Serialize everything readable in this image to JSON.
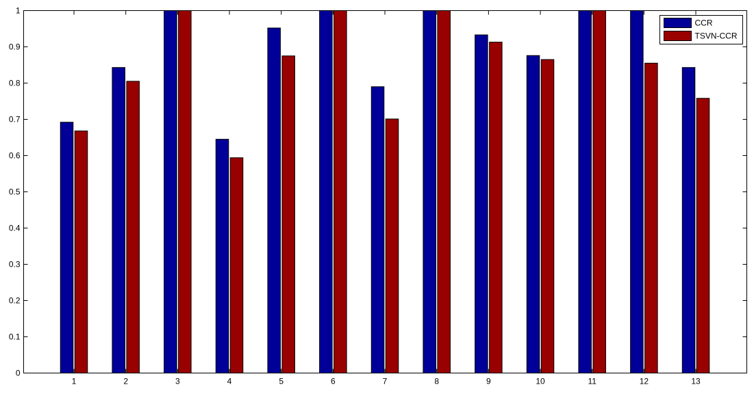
{
  "chart_data": {
    "type": "bar",
    "title": "",
    "xlabel": "",
    "ylabel": "",
    "categories": [
      "1",
      "2",
      "3",
      "4",
      "5",
      "6",
      "7",
      "8",
      "9",
      "10",
      "11",
      "12",
      "13"
    ],
    "series": [
      {
        "name": "CCR",
        "color": "#000099",
        "values": [
          0.692,
          0.843,
          1.0,
          0.645,
          0.952,
          1.0,
          0.79,
          1.0,
          0.933,
          0.876,
          1.0,
          1.0,
          0.843
        ]
      },
      {
        "name": "TSVN-CCR",
        "color": "#990000",
        "values": [
          0.668,
          0.805,
          1.0,
          0.594,
          0.875,
          1.0,
          0.701,
          1.0,
          0.913,
          0.865,
          1.0,
          0.855,
          0.758
        ]
      }
    ],
    "ylim": [
      0,
      1
    ],
    "yticks": [
      "0",
      "0.1",
      "0.2",
      "0.3",
      "0.4",
      "0.5",
      "0.6",
      "0.7",
      "0.8",
      "0.9",
      "1"
    ],
    "grid": false,
    "legend": "top-right"
  }
}
